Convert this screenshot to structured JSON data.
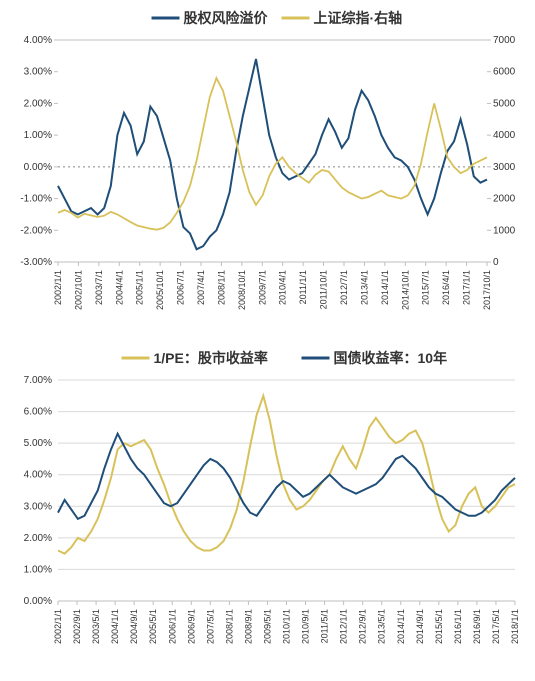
{
  "top_chart": {
    "type": "line-dual-axis",
    "legend_fontsize": 14,
    "series": [
      {
        "key": "erp",
        "label": "股权风险溢价",
        "color": "#1f4e79",
        "axis": "left",
        "width": 2.0
      },
      {
        "key": "index",
        "label": "上证综指·右轴",
        "color": "#d9c15a",
        "axis": "right",
        "width": 1.8
      }
    ],
    "left_axis": {
      "min": -3.0,
      "max": 4.0,
      "step": 1.0,
      "format": "pct2",
      "fontsize": 10,
      "color": "#333333"
    },
    "right_axis": {
      "min": 0,
      "max": 7000,
      "step": 1000,
      "format": "int",
      "fontsize": 10,
      "color": "#333333"
    },
    "zero_line": {
      "value": 0,
      "axis": "left",
      "style": "dotted",
      "color": "#888888"
    },
    "x_labels": [
      "2002/1/1",
      "2002/10/1",
      "2003/7/1",
      "2004/4/1",
      "2005/1/1",
      "2005/10/1",
      "2006/7/1",
      "2007/4/1",
      "2008/1/1",
      "2008/10/1",
      "2009/7/1",
      "2010/4/1",
      "2011/1/1",
      "2011/10/1",
      "2012/7/1",
      "2013/4/1",
      "2014/1/1",
      "2014/10/1",
      "2015/7/1",
      "2016/4/1",
      "2017/1/1",
      "2017/10/1"
    ],
    "x_fontsize": 9,
    "background_color": "#ffffff",
    "border_color": "#bfbfbf",
    "tick_color": "#bfbfbf",
    "erp": [
      -0.6,
      -1.0,
      -1.4,
      -1.5,
      -1.4,
      -1.3,
      -1.5,
      -1.3,
      -0.6,
      1.0,
      1.7,
      1.3,
      0.4,
      0.8,
      1.9,
      1.6,
      0.9,
      0.2,
      -1.0,
      -1.9,
      -2.1,
      -2.6,
      -2.5,
      -2.2,
      -2.0,
      -1.5,
      -0.8,
      0.5,
      1.6,
      2.5,
      3.4,
      2.2,
      1.0,
      0.3,
      -0.2,
      -0.4,
      -0.3,
      -0.2,
      0.1,
      0.4,
      1.0,
      1.5,
      1.1,
      0.6,
      0.9,
      1.8,
      2.4,
      2.1,
      1.6,
      1.0,
      0.6,
      0.3,
      0.2,
      0.0,
      -0.4,
      -1.0,
      -1.5,
      -1.0,
      -0.2,
      0.5,
      0.8,
      1.5,
      0.7,
      -0.3,
      -0.5,
      -0.4
    ],
    "index": [
      1550,
      1640,
      1550,
      1400,
      1520,
      1470,
      1420,
      1460,
      1580,
      1500,
      1380,
      1260,
      1150,
      1100,
      1050,
      1020,
      1080,
      1250,
      1550,
      1900,
      2400,
      3200,
      4200,
      5200,
      5800,
      5400,
      4600,
      3800,
      2900,
      2200,
      1800,
      2100,
      2700,
      3100,
      3300,
      3000,
      2800,
      2650,
      2500,
      2750,
      2900,
      2850,
      2600,
      2350,
      2200,
      2100,
      2000,
      2050,
      2150,
      2250,
      2100,
      2050,
      2000,
      2100,
      2400,
      3100,
      4100,
      5000,
      4200,
      3300,
      3000,
      2800,
      2900,
      3100,
      3200,
      3300
    ]
  },
  "bottom_chart": {
    "type": "line",
    "legend_fontsize": 14,
    "series": [
      {
        "key": "pe",
        "label": "1/PE：股市收益率",
        "color": "#d9c15a",
        "width": 2.0
      },
      {
        "key": "bond",
        "label": "国债收益率：10年",
        "color": "#1f4e79",
        "width": 2.0
      }
    ],
    "y_axis": {
      "min": 0.0,
      "max": 7.0,
      "step": 1.0,
      "format": "pct2",
      "fontsize": 10,
      "color": "#333333"
    },
    "x_labels": [
      "2002/1/1",
      "2002/9/1",
      "2003/5/1",
      "2004/1/1",
      "2004/9/1",
      "2005/5/1",
      "2006/1/1",
      "2006/9/1",
      "2007/5/1",
      "2008/1/1",
      "2008/9/1",
      "2009/5/1",
      "2010/1/1",
      "2010/9/1",
      "2011/5/1",
      "2012/1/1",
      "2012/9/1",
      "2013/5/1",
      "2014/1/1",
      "2014/9/1",
      "2015/5/1",
      "2016/1/1",
      "2016/9/1",
      "2017/5/1",
      "2018/1/1"
    ],
    "x_fontsize": 9,
    "background_color": "#ffffff",
    "grid_color": "#d9d9d9",
    "border_color": "#bfbfbf",
    "pe": [
      1.6,
      1.5,
      1.7,
      2.0,
      1.9,
      2.2,
      2.6,
      3.2,
      3.9,
      4.8,
      5.0,
      4.9,
      5.0,
      5.1,
      4.8,
      4.2,
      3.7,
      3.1,
      2.6,
      2.2,
      1.9,
      1.7,
      1.6,
      1.6,
      1.7,
      1.9,
      2.3,
      2.9,
      3.8,
      4.9,
      5.9,
      6.5,
      5.7,
      4.6,
      3.7,
      3.2,
      2.9,
      3.0,
      3.2,
      3.5,
      3.8,
      4.0,
      4.5,
      4.9,
      4.5,
      4.2,
      4.8,
      5.5,
      5.8,
      5.5,
      5.2,
      5.0,
      5.1,
      5.3,
      5.4,
      5.0,
      4.2,
      3.3,
      2.6,
      2.2,
      2.4,
      3.0,
      3.4,
      3.6,
      3.0,
      2.8,
      3.0,
      3.3,
      3.6,
      3.7
    ],
    "bond": [
      2.8,
      3.2,
      2.9,
      2.6,
      2.7,
      3.1,
      3.5,
      4.2,
      4.8,
      5.3,
      4.9,
      4.5,
      4.2,
      4.0,
      3.7,
      3.4,
      3.1,
      3.0,
      3.1,
      3.4,
      3.7,
      4.0,
      4.3,
      4.5,
      4.4,
      4.2,
      3.9,
      3.5,
      3.1,
      2.8,
      2.7,
      3.0,
      3.3,
      3.6,
      3.8,
      3.7,
      3.5,
      3.3,
      3.4,
      3.6,
      3.8,
      4.0,
      3.8,
      3.6,
      3.5,
      3.4,
      3.5,
      3.6,
      3.7,
      3.9,
      4.2,
      4.5,
      4.6,
      4.4,
      4.2,
      3.9,
      3.6,
      3.4,
      3.3,
      3.1,
      2.9,
      2.8,
      2.7,
      2.7,
      2.8,
      3.0,
      3.2,
      3.5,
      3.7,
      3.9
    ]
  }
}
